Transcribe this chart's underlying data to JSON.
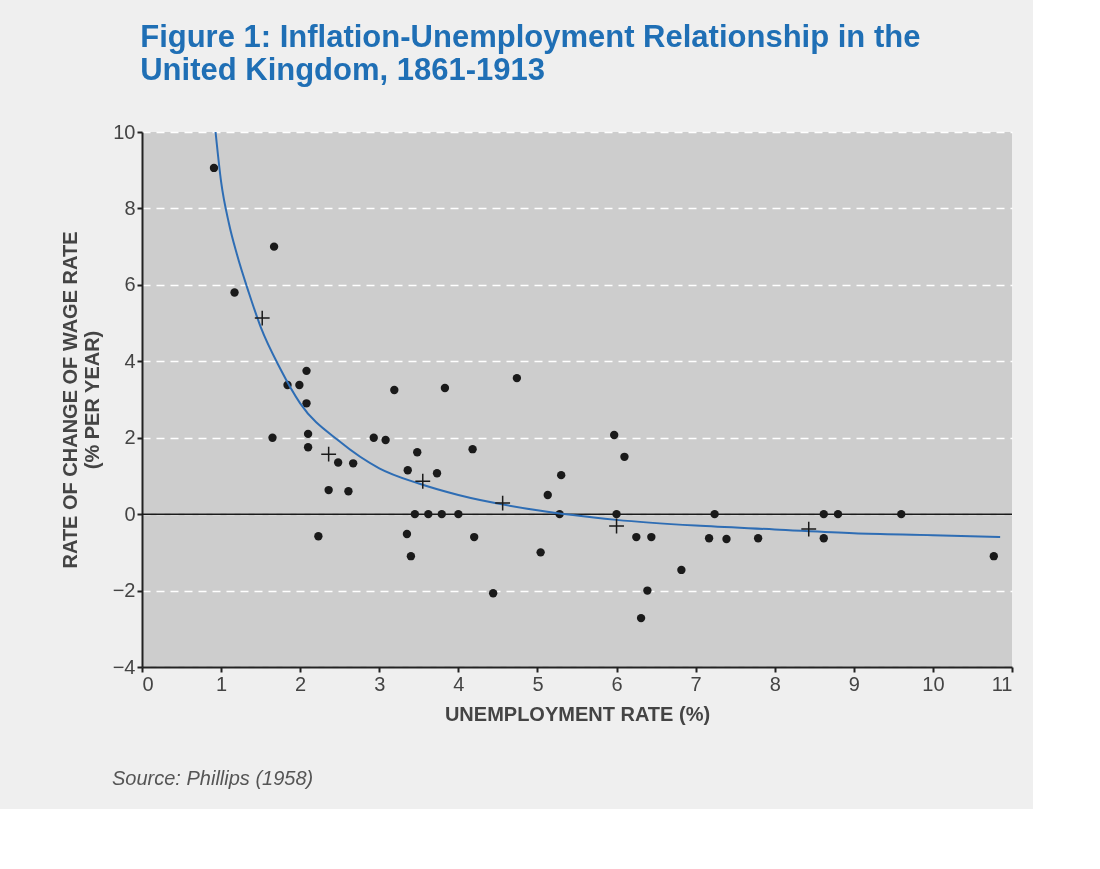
{
  "chart_data": {
    "type": "scatter",
    "title": [
      "Figure 1: Inflation-Unemployment Relationship in the",
      "United Kingdom, 1861-1913"
    ],
    "xlabel": "UNEMPLOYMENT RATE (%)",
    "ylabel": [
      "RATE OF CHANGE OF WAGE RATE",
      "(% PER YEAR)"
    ],
    "annotations": [
      "Source: Phillips (1958)"
    ],
    "xlim": [
      0,
      11
    ],
    "xticks": [
      0,
      1,
      2,
      3,
      4,
      5,
      6,
      7,
      8,
      9,
      10,
      11
    ],
    "ylim": [
      -4,
      10
    ],
    "yticks": [
      -4,
      -2,
      0,
      2,
      4,
      6,
      8,
      10
    ],
    "grid": "y",
    "ref_lines": [
      {
        "axis": "y",
        "value": 0,
        "color": "#1a1a1a",
        "line_style": "solid"
      }
    ],
    "series": [
      {
        "marker": "circle",
        "color": "#1a1a1a",
        "x": [
          0.91,
          1.17,
          1.67,
          1.65,
          1.84,
          1.99,
          2.08,
          2.08,
          2.1,
          2.1,
          2.23,
          2.36,
          2.48,
          2.61,
          2.67,
          2.93,
          3.08,
          3.19,
          3.36,
          3.48,
          3.35,
          3.4,
          3.45,
          3.62,
          3.79,
          4.0,
          3.73,
          3.83,
          4.18,
          4.2,
          4.44,
          4.74,
          5.04,
          5.13,
          5.3,
          5.28,
          5.97,
          6.1,
          6.0,
          6.25,
          6.44,
          6.31,
          6.39,
          6.82,
          7.17,
          7.24,
          7.39,
          7.79,
          8.62,
          8.62,
          8.8,
          9.6,
          10.77
        ],
        "values": [
          9.06,
          5.8,
          7.0,
          2.0,
          3.38,
          3.38,
          3.75,
          2.9,
          2.1,
          1.75,
          -0.58,
          0.63,
          1.35,
          0.6,
          1.33,
          2.0,
          1.94,
          3.25,
          1.15,
          1.62,
          -0.52,
          -1.1,
          0,
          0,
          0,
          0,
          1.07,
          3.3,
          1.7,
          -0.6,
          -2.07,
          3.56,
          -1.0,
          0.5,
          1.02,
          0,
          2.07,
          1.5,
          0,
          -0.6,
          -0.6,
          -2.72,
          -2.0,
          -1.46,
          -0.63,
          0,
          -0.65,
          -0.63,
          0,
          -0.63,
          0,
          0,
          -1.1
        ]
      },
      {
        "marker": "cross",
        "color": "#1a1a1a",
        "x": [
          1.52,
          2.36,
          3.55,
          4.56,
          6.0,
          8.43
        ],
        "values": [
          5.13,
          1.57,
          0.86,
          0.29,
          -0.31,
          -0.39
        ]
      },
      {
        "type": "line",
        "line_style": "solid",
        "color": "#2e6db4",
        "x": [
          0.93,
          1.0,
          1.1,
          1.2,
          1.35,
          1.5,
          1.75,
          2.0,
          2.5,
          3.0,
          3.5,
          4.0,
          5.0,
          6.0,
          7.0,
          8.0,
          9.0,
          10.0,
          10.85
        ],
        "values": [
          10.0,
          8.7,
          7.6,
          6.8,
          5.8,
          4.9,
          3.8,
          2.9,
          1.9,
          1.2,
          0.8,
          0.5,
          0.1,
          -0.15,
          -0.3,
          -0.4,
          -0.5,
          -0.55,
          -0.6
        ]
      }
    ]
  }
}
